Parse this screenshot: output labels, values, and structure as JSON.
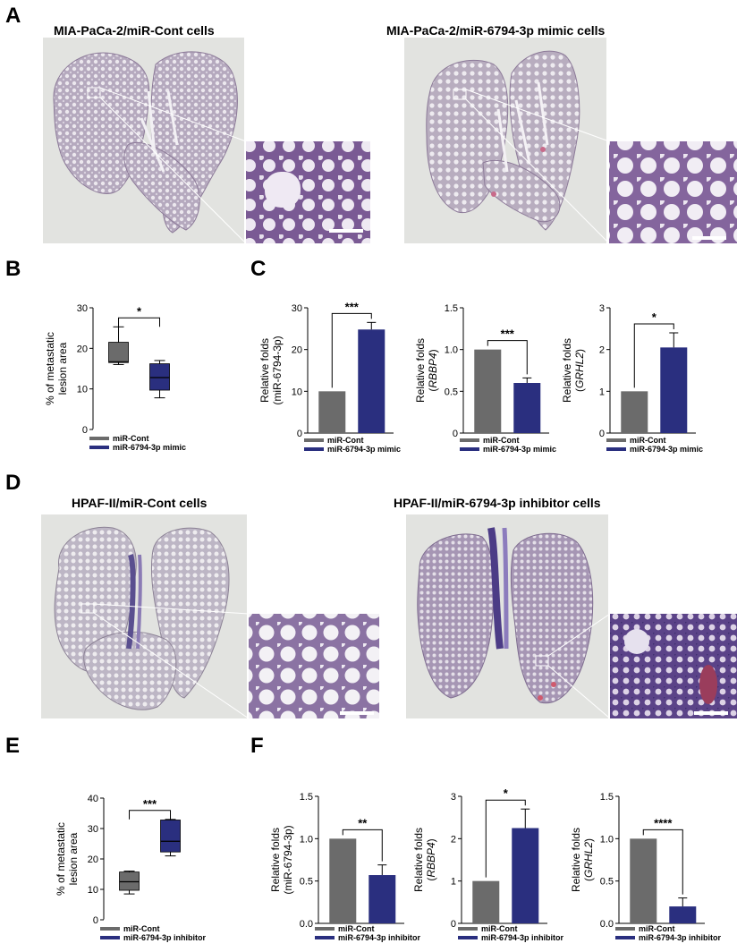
{
  "figure": {
    "panels": {
      "A": {
        "label": "A",
        "left_title": "MIA-PaCa-2/miR-Cont cells",
        "right_title": "MIA-PaCa-2/miR-6794-3p mimic cells"
      },
      "B": {
        "label": "B"
      },
      "C": {
        "label": "C"
      },
      "D": {
        "label": "D",
        "left_title": "HPAF-II/miR-Cont cells",
        "right_title": "HPAF-II/miR-6794-3p inhibitor cells"
      },
      "E": {
        "label": "E"
      },
      "F": {
        "label": "F"
      }
    },
    "colors": {
      "control": "#6b6b6b",
      "treatment": "#2a2f7f",
      "tissue_bg": "#e2e3e0",
      "stain": "#7d5e95"
    }
  },
  "chart_data": [
    {
      "id": "B",
      "type": "box",
      "ylabel_lines": [
        "% of metastatic",
        "lesion area"
      ],
      "ylim": [
        0,
        30
      ],
      "yticks": [
        "0",
        "10",
        "20",
        "30"
      ],
      "series": [
        {
          "name": "miR-Cont",
          "min": 16,
          "q1": 16.5,
          "median": 16.7,
          "q3": 21.5,
          "max": 25.3
        },
        {
          "name": "miR-6794-3p mimic",
          "min": 7.8,
          "q1": 9.7,
          "median": 12.8,
          "q3": 16.2,
          "max": 17
        }
      ],
      "significance": "*",
      "legend": [
        "miR-Cont",
        "miR-6794-3p mimic"
      ]
    },
    {
      "id": "C1",
      "type": "bar",
      "ylabel_lines": [
        "Relative folds",
        "(miR-6794-3p)"
      ],
      "ylim": [
        0,
        30
      ],
      "yticks": [
        "0",
        "10",
        "20",
        "30"
      ],
      "values": [
        10,
        24.8
      ],
      "errors": [
        0,
        1.7
      ],
      "significance": "***",
      "legend": [
        "miR-Cont",
        "miR-6794-3p mimic"
      ]
    },
    {
      "id": "C2",
      "type": "bar",
      "ylabel_lines": [
        "Relative folds",
        "(RBBP4)"
      ],
      "ylim": [
        0,
        1.5
      ],
      "yticks": [
        "0",
        "0.5",
        "1.0",
        "1.5"
      ],
      "values": [
        1.0,
        0.6
      ],
      "errors": [
        0,
        0.06
      ],
      "significance": "***",
      "legend": [
        "miR-Cont",
        "miR-6794-3p mimic"
      ]
    },
    {
      "id": "C3",
      "type": "bar",
      "ylabel_lines": [
        "Relative folds",
        "(GRHL2)"
      ],
      "ylim": [
        0,
        3
      ],
      "yticks": [
        "0",
        "1",
        "2",
        "3"
      ],
      "values": [
        1.0,
        2.05
      ],
      "errors": [
        0,
        0.35
      ],
      "significance": "*",
      "legend": [
        "miR-Cont",
        "miR-6794-3p mimic"
      ]
    },
    {
      "id": "E",
      "type": "box",
      "ylabel_lines": [
        "% of metastatic",
        "lesion area"
      ],
      "ylim": [
        0,
        40
      ],
      "yticks": [
        "0",
        "10",
        "20",
        "30",
        "40"
      ],
      "series": [
        {
          "name": "miR-Cont",
          "min": 8.5,
          "q1": 9.7,
          "median": 12.5,
          "q3": 15.7,
          "max": 16
        },
        {
          "name": "miR-6794-3p inhibitor",
          "min": 21,
          "q1": 22.3,
          "median": 25.8,
          "q3": 32.8,
          "max": 33
        }
      ],
      "significance": "***",
      "legend": [
        "miR-Cont",
        "miR-6794-3p inhibitor"
      ]
    },
    {
      "id": "F1",
      "type": "bar",
      "ylabel_lines": [
        "Relative folds",
        "(miR-6794-3p)"
      ],
      "ylim": [
        0,
        1.5
      ],
      "yticks": [
        "0.0",
        "0.5",
        "1.0",
        "1.5"
      ],
      "values": [
        1.0,
        0.57
      ],
      "errors": [
        0,
        0.12
      ],
      "significance": "**",
      "legend": [
        "miR-Cont",
        "miR-6794-3p inhibitor"
      ]
    },
    {
      "id": "F2",
      "type": "bar",
      "ylabel_lines": [
        "Relative folds",
        "(RBBP4)"
      ],
      "ylim": [
        0,
        3
      ],
      "yticks": [
        "0",
        "1",
        "2",
        "3"
      ],
      "values": [
        1.0,
        2.25
      ],
      "errors": [
        0,
        0.45
      ],
      "significance": "*",
      "legend": [
        "miR-Cont",
        "miR-6794-3p inhibitor"
      ]
    },
    {
      "id": "F3",
      "type": "bar",
      "ylabel_lines": [
        "Relative folds",
        "(GRHL2)"
      ],
      "ylim": [
        0,
        1.5
      ],
      "yticks": [
        "0.0",
        "0.5",
        "1.0",
        "1.5"
      ],
      "values": [
        1.0,
        0.2
      ],
      "errors": [
        0,
        0.1
      ],
      "significance": "****",
      "legend": [
        "miR-Cont",
        "miR-6794-3p inhibitor"
      ]
    }
  ]
}
